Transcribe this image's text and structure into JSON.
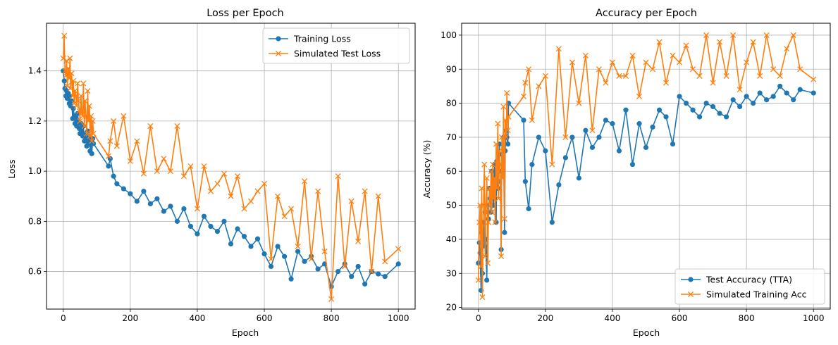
{
  "chart_data": [
    {
      "type": "line",
      "title": "Loss per Epoch",
      "xlabel": "Epoch",
      "ylabel": "Loss",
      "xlim": [
        -50,
        1050
      ],
      "ylim": [
        0.45,
        1.59
      ],
      "xticks": [
        0,
        200,
        400,
        600,
        800,
        1000
      ],
      "yticks": [
        0.6,
        0.8,
        1.0,
        1.2,
        1.4
      ],
      "ytick_decimals": 1,
      "grid": true,
      "legend_position": "top-right",
      "series": [
        {
          "name": "Training Loss",
          "color": "#1f77b4",
          "marker": "circle",
          "x": [
            0,
            3,
            5,
            8,
            10,
            12,
            15,
            18,
            20,
            22,
            25,
            28,
            30,
            33,
            35,
            38,
            40,
            43,
            45,
            48,
            50,
            53,
            55,
            58,
            60,
            63,
            65,
            68,
            70,
            73,
            75,
            78,
            80,
            83,
            85,
            88,
            90,
            135,
            140,
            150,
            160,
            180,
            200,
            220,
            240,
            260,
            280,
            300,
            320,
            340,
            360,
            380,
            400,
            420,
            440,
            460,
            480,
            500,
            520,
            540,
            560,
            580,
            600,
            620,
            640,
            660,
            680,
            700,
            720,
            740,
            760,
            780,
            800,
            820,
            840,
            860,
            880,
            900,
            920,
            940,
            960,
            1000
          ],
          "values": [
            1.4,
            1.36,
            1.33,
            1.3,
            1.32,
            1.29,
            1.31,
            1.27,
            1.3,
            1.26,
            1.28,
            1.21,
            1.25,
            1.22,
            1.19,
            1.21,
            1.18,
            1.23,
            1.2,
            1.17,
            1.15,
            1.19,
            1.16,
            1.14,
            1.18,
            1.12,
            1.15,
            1.13,
            1.1,
            1.16,
            1.11,
            1.14,
            1.08,
            1.12,
            1.07,
            1.13,
            1.11,
            1.02,
            1.05,
            0.98,
            0.95,
            0.93,
            0.91,
            0.88,
            0.92,
            0.87,
            0.89,
            0.84,
            0.86,
            0.8,
            0.85,
            0.78,
            0.75,
            0.82,
            0.78,
            0.76,
            0.8,
            0.71,
            0.77,
            0.74,
            0.7,
            0.73,
            0.67,
            0.62,
            0.7,
            0.66,
            0.57,
            0.68,
            0.64,
            0.66,
            0.61,
            0.63,
            0.54,
            0.6,
            0.63,
            0.58,
            0.62,
            0.55,
            0.6,
            0.59,
            0.58,
            0.63
          ]
        },
        {
          "name": "Simulated Test Loss",
          "color": "#ff7f0e",
          "marker": "x",
          "x": [
            0,
            3,
            5,
            8,
            10,
            12,
            15,
            18,
            20,
            22,
            25,
            28,
            30,
            33,
            35,
            38,
            40,
            43,
            45,
            48,
            50,
            53,
            55,
            58,
            60,
            63,
            65,
            68,
            70,
            73,
            75,
            78,
            80,
            83,
            85,
            88,
            90,
            135,
            140,
            150,
            160,
            180,
            200,
            220,
            240,
            260,
            280,
            300,
            320,
            340,
            360,
            380,
            400,
            420,
            440,
            460,
            480,
            500,
            520,
            540,
            560,
            580,
            600,
            620,
            640,
            660,
            680,
            700,
            720,
            740,
            760,
            780,
            800,
            820,
            840,
            860,
            880,
            900,
            920,
            940,
            960,
            1000
          ],
          "values": [
            1.45,
            1.54,
            1.4,
            1.38,
            1.44,
            1.34,
            1.41,
            1.37,
            1.45,
            1.33,
            1.39,
            1.3,
            1.36,
            1.27,
            1.32,
            1.3,
            1.26,
            1.35,
            1.28,
            1.24,
            1.2,
            1.3,
            1.24,
            1.22,
            1.35,
            1.18,
            1.28,
            1.22,
            1.15,
            1.32,
            1.2,
            1.26,
            1.14,
            1.22,
            1.12,
            1.2,
            1.15,
            1.06,
            1.12,
            1.2,
            1.1,
            1.22,
            1.04,
            1.12,
            0.99,
            1.18,
            1.0,
            1.05,
            1.0,
            1.18,
            0.98,
            1.02,
            0.85,
            1.02,
            0.92,
            0.95,
            0.99,
            0.9,
            0.98,
            0.85,
            0.88,
            0.92,
            0.95,
            0.65,
            0.9,
            0.82,
            0.85,
            0.7,
            0.96,
            0.65,
            0.92,
            0.68,
            0.49,
            0.98,
            0.62,
            0.88,
            0.72,
            0.92,
            0.6,
            0.9,
            0.64,
            0.69
          ]
        }
      ]
    },
    {
      "type": "line",
      "title": "Accuracy per Epoch",
      "xlabel": "Epoch",
      "ylabel": "Accuracy (%)",
      "xlim": [
        -50,
        1050
      ],
      "ylim": [
        19.5,
        103.5
      ],
      "xticks": [
        0,
        200,
        400,
        600,
        800,
        1000
      ],
      "yticks": [
        20,
        30,
        40,
        50,
        60,
        70,
        80,
        90,
        100
      ],
      "ytick_decimals": 0,
      "grid": true,
      "legend_position": "bottom-right",
      "series": [
        {
          "name": "Test Accuracy (TTA)",
          "color": "#1f77b4",
          "marker": "circle",
          "x": [
            0,
            3,
            5,
            8,
            10,
            12,
            15,
            18,
            20,
            22,
            25,
            28,
            30,
            33,
            35,
            38,
            40,
            43,
            45,
            48,
            50,
            53,
            55,
            58,
            60,
            63,
            65,
            68,
            70,
            73,
            75,
            78,
            80,
            83,
            85,
            88,
            90,
            135,
            140,
            150,
            160,
            180,
            200,
            220,
            240,
            260,
            280,
            300,
            320,
            340,
            360,
            380,
            400,
            420,
            440,
            460,
            480,
            500,
            520,
            540,
            560,
            580,
            600,
            620,
            640,
            660,
            680,
            700,
            720,
            740,
            760,
            780,
            800,
            820,
            840,
            860,
            880,
            900,
            920,
            940,
            960,
            1000
          ],
          "values": [
            33,
            39,
            36,
            25,
            42,
            30,
            45,
            38,
            48,
            40,
            28,
            50,
            46,
            55,
            52,
            48,
            60,
            55,
            50,
            62,
            58,
            45,
            63,
            55,
            57,
            68,
            60,
            37,
            65,
            62,
            70,
            42,
            66,
            72,
            70,
            68,
            80,
            75,
            57,
            49,
            62,
            70,
            66,
            45,
            56,
            64,
            70,
            58,
            72,
            67,
            70,
            75,
            74,
            66,
            78,
            62,
            74,
            67,
            73,
            78,
            76,
            68,
            82,
            80,
            78,
            76,
            80,
            79,
            77,
            76,
            81,
            79,
            82,
            80,
            83,
            81,
            82,
            85,
            83,
            81,
            84,
            83
          ]
        },
        {
          "name": "Simulated Training Acc",
          "color": "#ff7f0e",
          "marker": "x",
          "x": [
            0,
            3,
            5,
            8,
            10,
            12,
            15,
            18,
            20,
            22,
            25,
            28,
            30,
            33,
            35,
            38,
            40,
            43,
            45,
            48,
            50,
            53,
            55,
            58,
            60,
            63,
            65,
            68,
            70,
            73,
            75,
            78,
            80,
            83,
            85,
            88,
            90,
            135,
            140,
            150,
            160,
            180,
            200,
            220,
            240,
            260,
            280,
            300,
            320,
            340,
            360,
            380,
            400,
            420,
            440,
            460,
            480,
            500,
            520,
            540,
            560,
            580,
            600,
            620,
            640,
            660,
            680,
            700,
            720,
            740,
            760,
            780,
            800,
            820,
            840,
            860,
            880,
            900,
            920,
            940,
            960,
            1000
          ],
          "values": [
            28,
            45,
            50,
            32,
            55,
            23,
            50,
            62,
            35,
            48,
            58,
            33,
            45,
            55,
            50,
            60,
            48,
            62,
            52,
            58,
            45,
            68,
            55,
            74,
            52,
            66,
            62,
            35,
            70,
            58,
            79,
            46,
            75,
            70,
            83,
            72,
            76,
            82,
            86,
            90,
            75,
            85,
            88,
            62,
            96,
            70,
            92,
            80,
            94,
            72,
            90,
            86,
            92,
            88,
            88,
            94,
            82,
            92,
            90,
            98,
            86,
            94,
            92,
            97,
            90,
            88,
            100,
            86,
            98,
            88,
            100,
            84,
            92,
            98,
            88,
            100,
            90,
            88,
            96,
            100,
            90,
            87
          ]
        }
      ]
    }
  ]
}
